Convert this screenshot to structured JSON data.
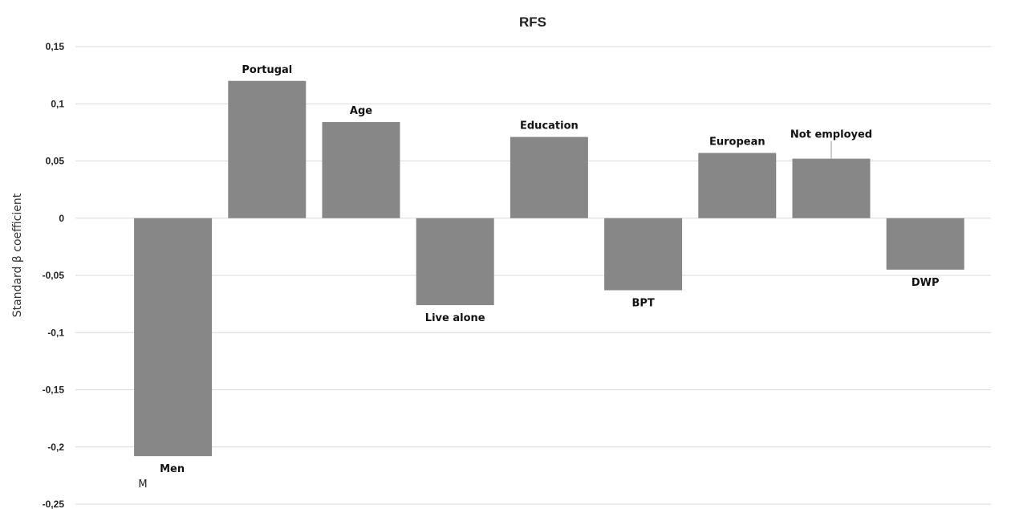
{
  "chart_data": {
    "type": "bar",
    "title": "RFS",
    "xlabel": "",
    "ylabel": "Standard β coefficient",
    "ylim": [
      -0.25,
      0.15
    ],
    "yticks": [
      "0,15",
      "0,1",
      "0,05",
      "0",
      "-0,05",
      "-0,1",
      "-0,15",
      "-0,2",
      "-0,25"
    ],
    "grid": true,
    "bar_color": "#878787",
    "categories": [
      "Men",
      "Portugal",
      "Age",
      "Live alone",
      "Education",
      "BPT",
      "European",
      "Not employed",
      "DWP"
    ],
    "values": [
      -0.208,
      0.12,
      0.084,
      -0.076,
      0.071,
      -0.063,
      0.057,
      0.052,
      -0.045
    ],
    "annotations": [
      "M"
    ]
  }
}
